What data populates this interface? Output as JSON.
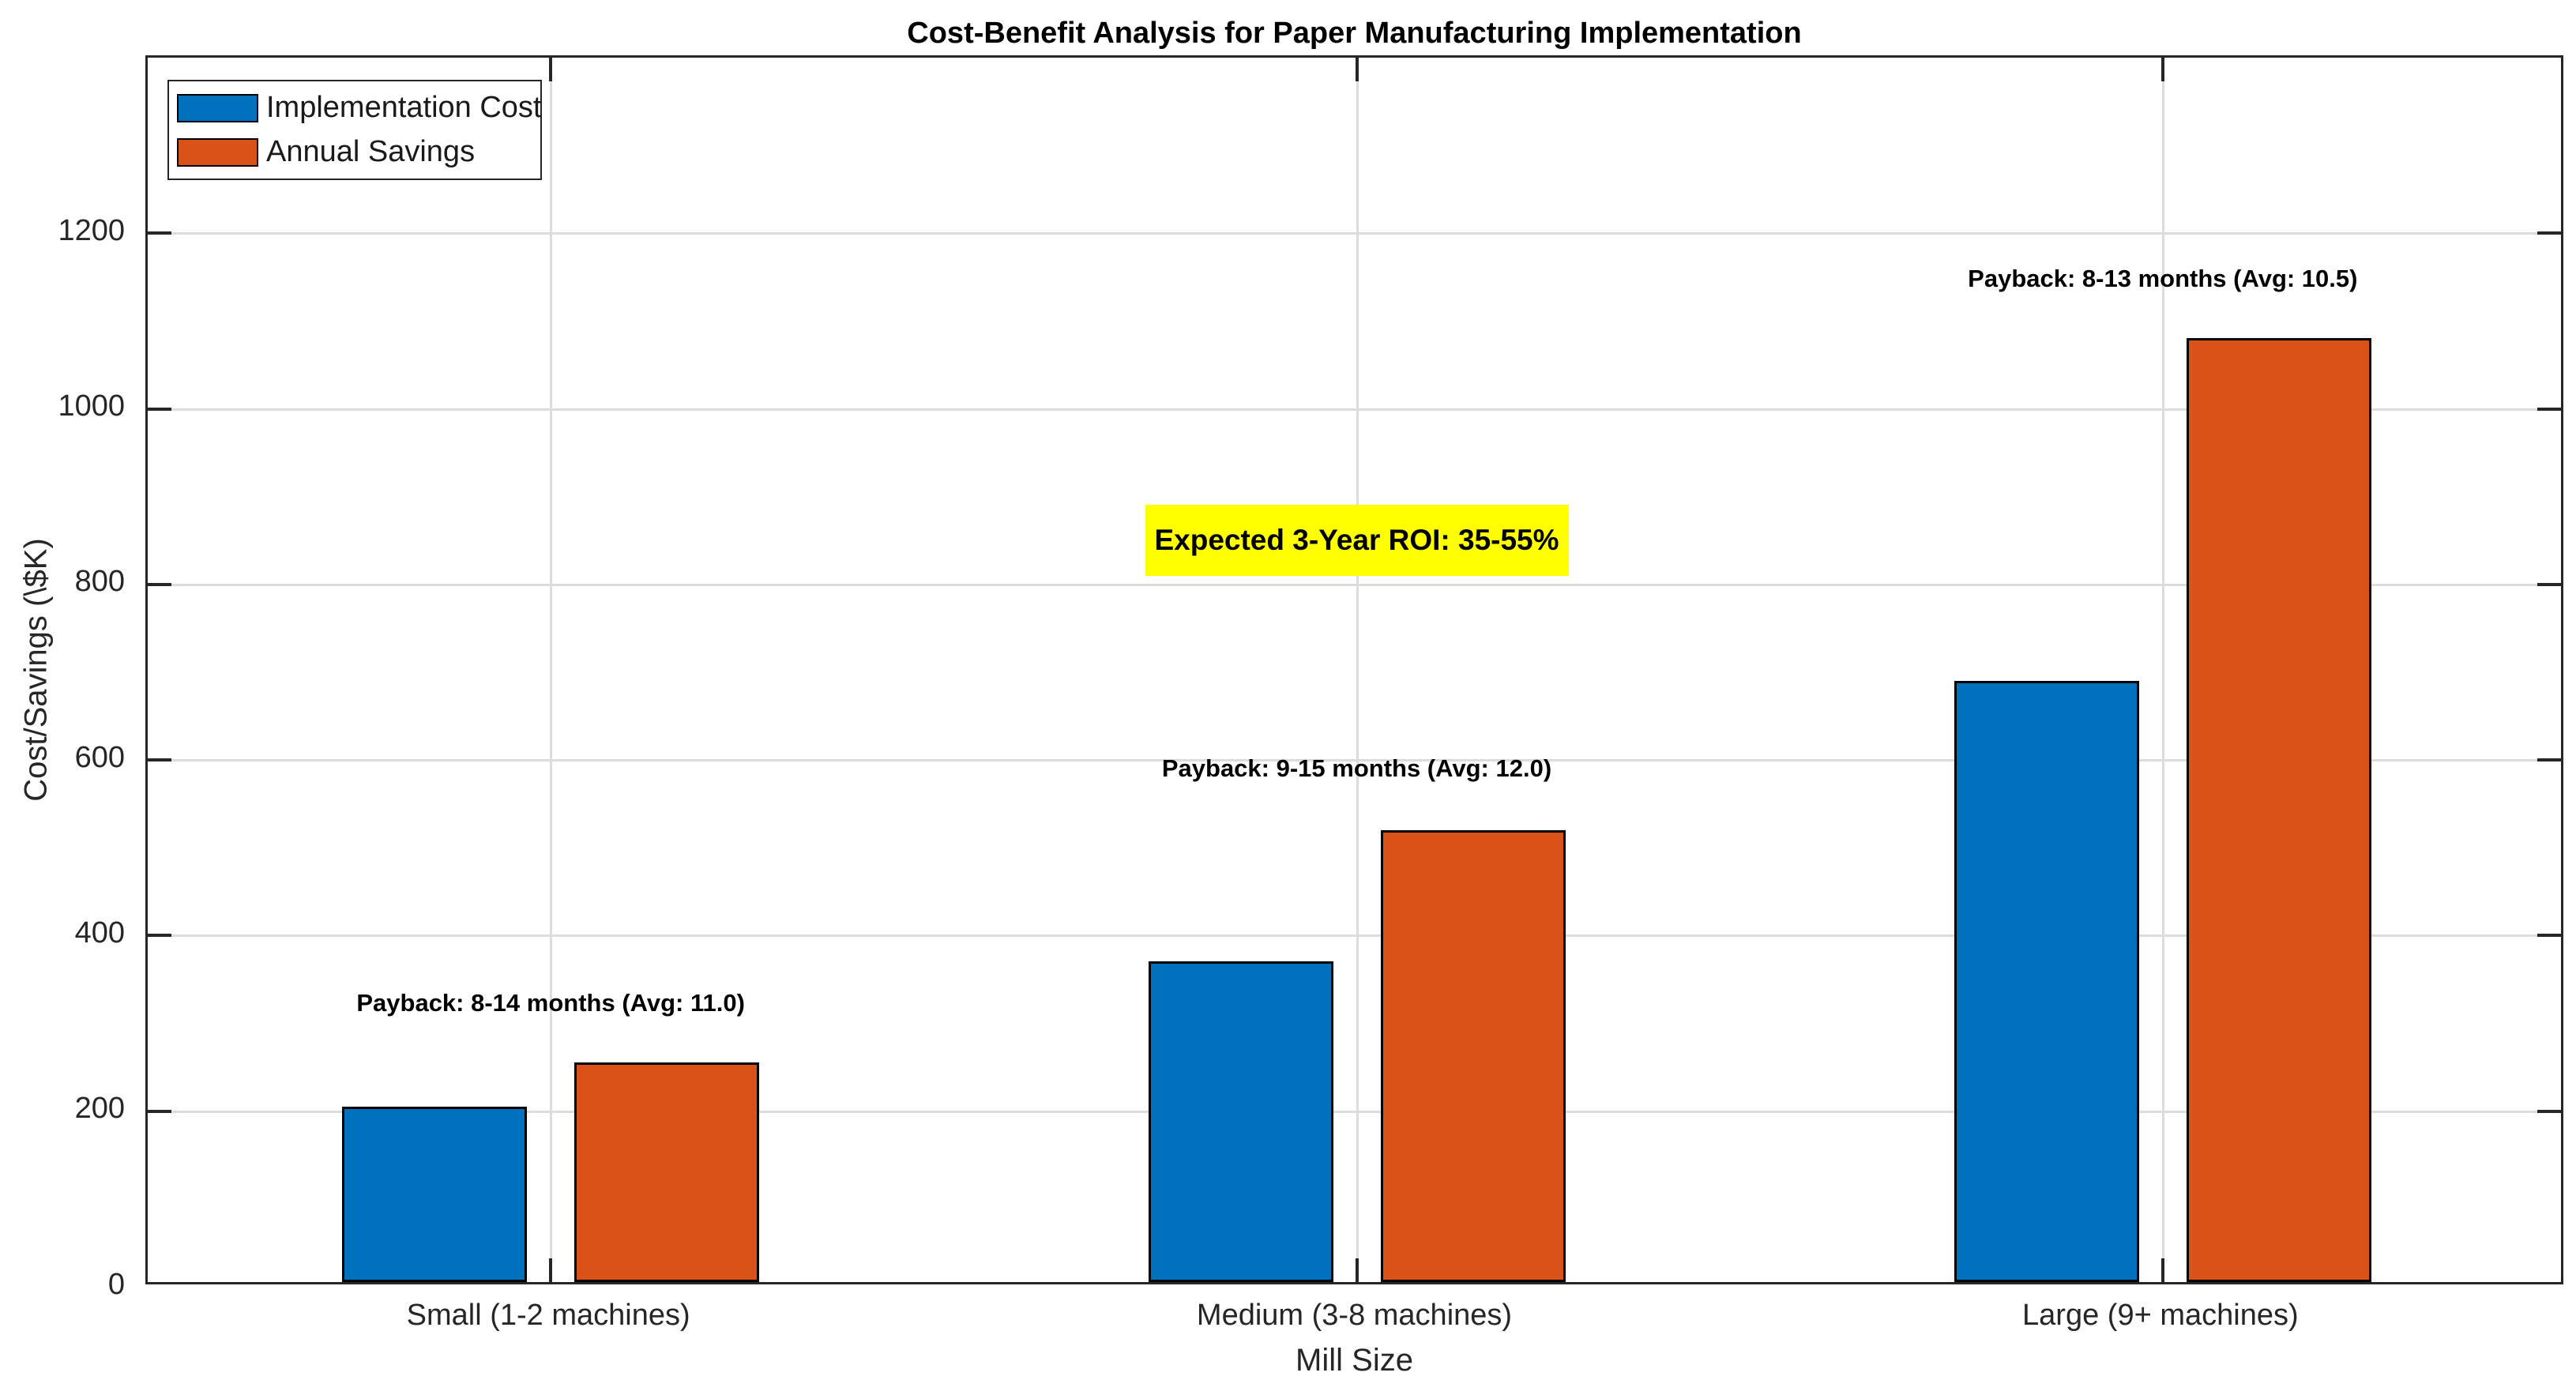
{
  "chart_data": {
    "type": "bar",
    "title": "Cost-Benefit Analysis for Paper Manufacturing Implementation",
    "xlabel": "Mill Size",
    "ylabel": "Cost/Savings (\\$K)",
    "categories": [
      "Small (1-2 machines)",
      "Medium (3-8 machines)",
      "Large (9+ machines)"
    ],
    "series": [
      {
        "name": "Implementation Cost",
        "color": "#0072BD",
        "values": [
          200,
          365,
          685
        ]
      },
      {
        "name": "Annual Savings",
        "color": "#D95319",
        "values": [
          250,
          515,
          1075
        ]
      }
    ],
    "ylim": [
      0,
      1400
    ],
    "yticks": [
      0,
      200,
      400,
      600,
      800,
      1000,
      1200
    ],
    "grid": true,
    "legend": {
      "position": "top-left",
      "entries": [
        "Implementation Cost",
        "Annual Savings"
      ]
    },
    "annotations": [
      {
        "id": "payback-small",
        "text": "Payback: 8-14 months (Avg: 11.0)",
        "category_index": 0,
        "y": 323,
        "bold": true,
        "background": null
      },
      {
        "id": "payback-medium",
        "text": "Payback: 9-15 months (Avg: 12.0)",
        "category_index": 1,
        "y": 590,
        "bold": true,
        "background": null
      },
      {
        "id": "payback-large",
        "text": "Payback: 8-13 months (Avg: 10.5)",
        "category_index": 2,
        "y": 1148,
        "bold": true,
        "background": null
      },
      {
        "id": "roi",
        "text": "Expected 3-Year ROI: 35-55%",
        "category_index": 1,
        "y": 850,
        "bold": true,
        "background": "#FFFF00"
      }
    ]
  }
}
